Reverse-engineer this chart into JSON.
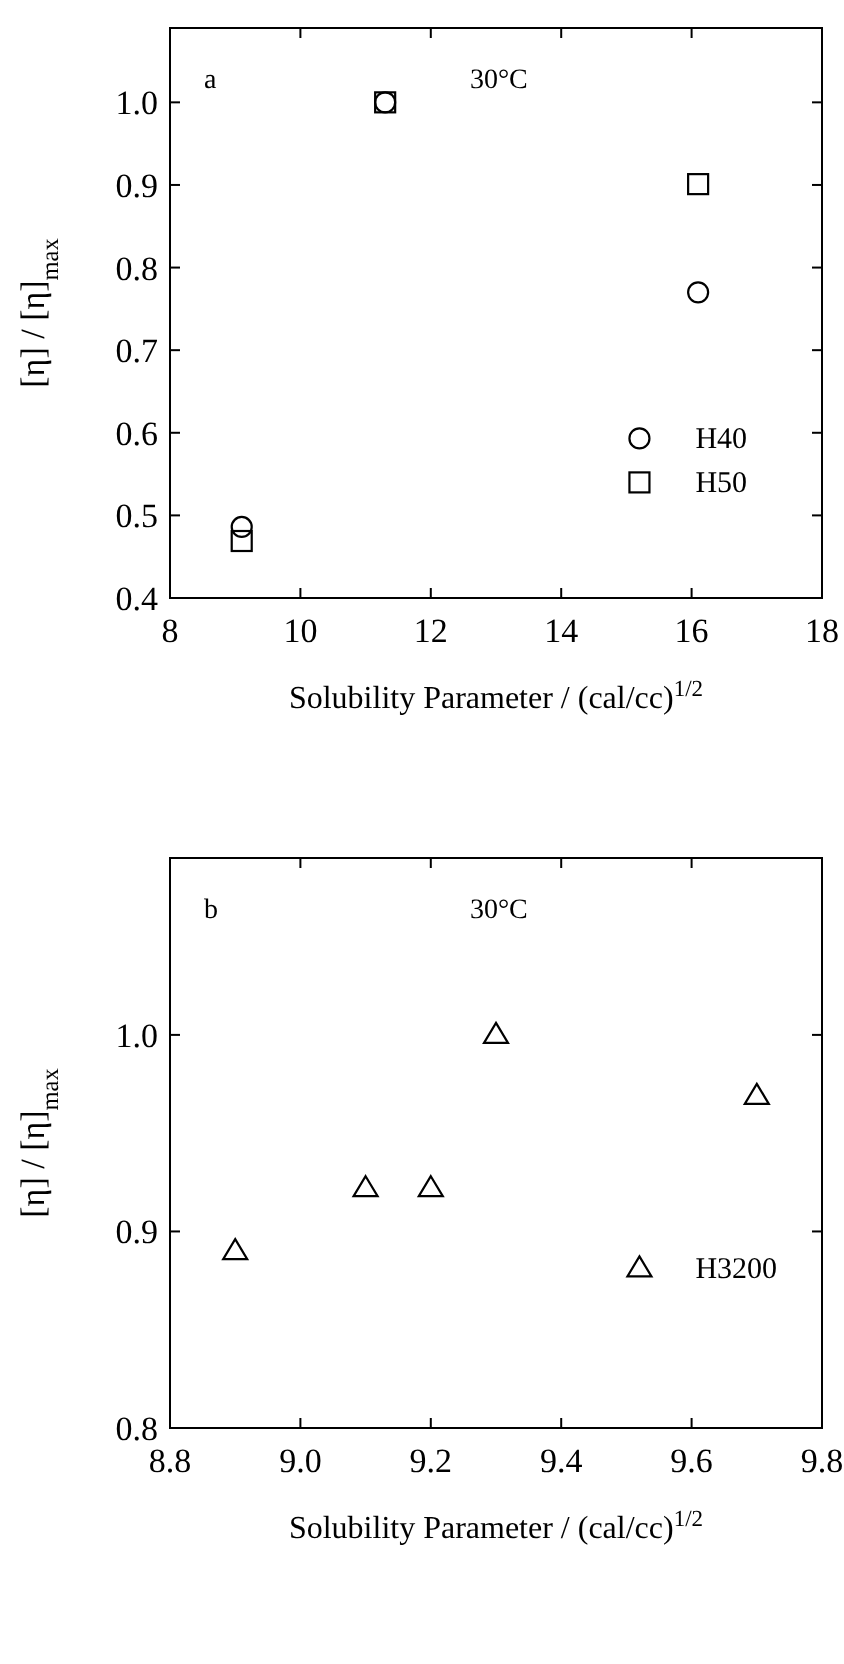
{
  "chart_data": [
    {
      "type": "scatter",
      "xlabel": "Solubility Parameter / (cal/cc)$^{1/2}$",
      "ylabel": "[η] / [η]$_{max}$",
      "annotations": [
        "a",
        "30°C"
      ],
      "xlim": [
        8,
        18
      ],
      "xticks": [
        8,
        10,
        12,
        14,
        16,
        18
      ],
      "ylim": [
        0.4,
        1.09
      ],
      "yticks": [
        {
          "value": 0.4,
          "label": "0.4"
        },
        {
          "value": 0.5,
          "label": "0.5"
        },
        {
          "value": 0.6,
          "label": "0.6"
        },
        {
          "value": 0.7,
          "label": "0.7"
        },
        {
          "value": 0.8,
          "label": "0.8"
        },
        {
          "value": 0.9,
          "label": "0.9"
        },
        {
          "value": 1.0,
          "label": "1.0"
        }
      ],
      "legend": "bottom right",
      "grid": false,
      "series": [
        {
          "name": "H40",
          "color": "#000000",
          "marker": "circle",
          "x": [
            9.1,
            11.3,
            16.1
          ],
          "values": [
            0.486,
            1.0,
            0.77
          ]
        },
        {
          "name": "H50",
          "color": "#000000",
          "marker": "square",
          "x": [
            9.1,
            11.3,
            16.1
          ],
          "values": [
            0.469,
            1.0,
            0.901
          ]
        }
      ]
    },
    {
      "type": "scatter",
      "xlabel": "Solubility Parameter / (cal/cc)$^{1/2}$",
      "ylabel": "[η] / [η]$_{max}$",
      "annotations": [
        "b",
        "30°C"
      ],
      "xlim": [
        8.8,
        9.8
      ],
      "xticks": [
        {
          "value": 8.8,
          "label": "8.8"
        },
        {
          "value": 9.0,
          "label": "9.0"
        },
        {
          "value": 9.2,
          "label": "9.2"
        },
        {
          "value": 9.4,
          "label": "9.4"
        },
        {
          "value": 9.6,
          "label": "9.6"
        },
        {
          "value": 9.8,
          "label": "9.8"
        }
      ],
      "ylim": [
        0.8,
        1.09
      ],
      "yticks": [
        {
          "value": 0.8,
          "label": "0.8"
        },
        {
          "value": 0.9,
          "label": "0.9"
        },
        {
          "value": 1.0,
          "label": "1.0"
        }
      ],
      "legend": "bottom right",
      "grid": false,
      "series": [
        {
          "name": "H3200",
          "color": "#000000",
          "marker": "triangle",
          "x": [
            8.9,
            9.1,
            9.2,
            9.3,
            9.7
          ],
          "values": [
            0.89,
            0.922,
            0.922,
            1.0,
            0.969
          ]
        }
      ]
    }
  ]
}
